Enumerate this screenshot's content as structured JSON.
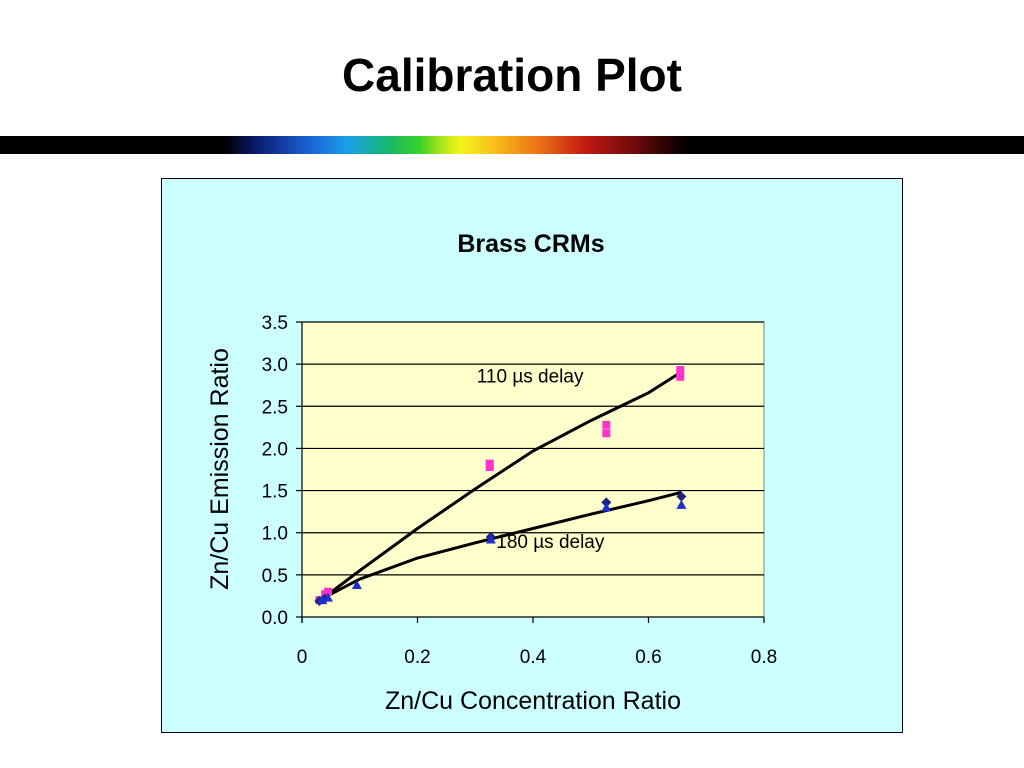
{
  "slide": {
    "title": "Calibration Plot"
  },
  "colors": {
    "chart_bg": "#ccffff",
    "plot_bg": "#ffffcc",
    "series_110": "#ff33cc",
    "series_180_diamond": "#1a237e",
    "series_180_triangle": "#1f2fcc",
    "fit_line": "#000000"
  },
  "chart_data": {
    "type": "scatter",
    "title": "Brass CRMs",
    "xlabel": "Zn/Cu Concentration Ratio",
    "ylabel": "Zn/Cu Emission Ratio",
    "xlim": [
      0,
      0.8
    ],
    "ylim": [
      0,
      3.5
    ],
    "x_ticks": [
      "0",
      "0.2",
      "0.4",
      "0.6",
      "0.8"
    ],
    "x_tick_values": [
      0,
      0.2,
      0.4,
      0.6,
      0.8
    ],
    "y_ticks": [
      "0.0",
      "0.5",
      "1.0",
      "1.5",
      "2.0",
      "2.5",
      "3.0",
      "3.5"
    ],
    "y_tick_values": [
      0,
      0.5,
      1.0,
      1.5,
      2.0,
      2.5,
      3.0,
      3.5
    ],
    "grid": "horizontal",
    "annotations": [
      {
        "text": "110 µs delay",
        "x": 0.395,
        "y": 2.78
      },
      {
        "text": "180 µs delay",
        "x": 0.43,
        "y": 0.82
      }
    ],
    "series": [
      {
        "marker": "square",
        "points": [
          [
            0.03,
            0.2
          ],
          [
            0.04,
            0.27
          ],
          [
            0.045,
            0.3
          ],
          [
            0.325,
            1.78
          ],
          [
            0.325,
            1.82
          ],
          [
            0.527,
            2.18
          ],
          [
            0.527,
            2.28
          ],
          [
            0.655,
            2.85
          ],
          [
            0.655,
            2.93
          ]
        ]
      },
      {
        "marker": "diamond",
        "points": [
          [
            0.03,
            0.19
          ],
          [
            0.04,
            0.22
          ],
          [
            0.327,
            0.95
          ],
          [
            0.527,
            1.36
          ],
          [
            0.657,
            1.43
          ]
        ]
      },
      {
        "marker": "triangle",
        "points": [
          [
            0.035,
            0.2
          ],
          [
            0.045,
            0.23
          ],
          [
            0.095,
            0.38
          ],
          [
            0.327,
            0.92
          ],
          [
            0.527,
            1.3
          ],
          [
            0.657,
            1.33
          ]
        ]
      }
    ],
    "fit_lines": [
      {
        "points": [
          [
            0.03,
            0.19
          ],
          [
            0.1,
            0.55
          ],
          [
            0.2,
            1.05
          ],
          [
            0.3,
            1.52
          ],
          [
            0.4,
            1.97
          ],
          [
            0.5,
            2.33
          ],
          [
            0.6,
            2.66
          ],
          [
            0.655,
            2.9
          ]
        ]
      },
      {
        "points": [
          [
            0.03,
            0.2
          ],
          [
            0.1,
            0.45
          ],
          [
            0.2,
            0.7
          ],
          [
            0.3,
            0.88
          ],
          [
            0.4,
            1.05
          ],
          [
            0.5,
            1.22
          ],
          [
            0.6,
            1.38
          ],
          [
            0.657,
            1.48
          ]
        ]
      }
    ]
  }
}
